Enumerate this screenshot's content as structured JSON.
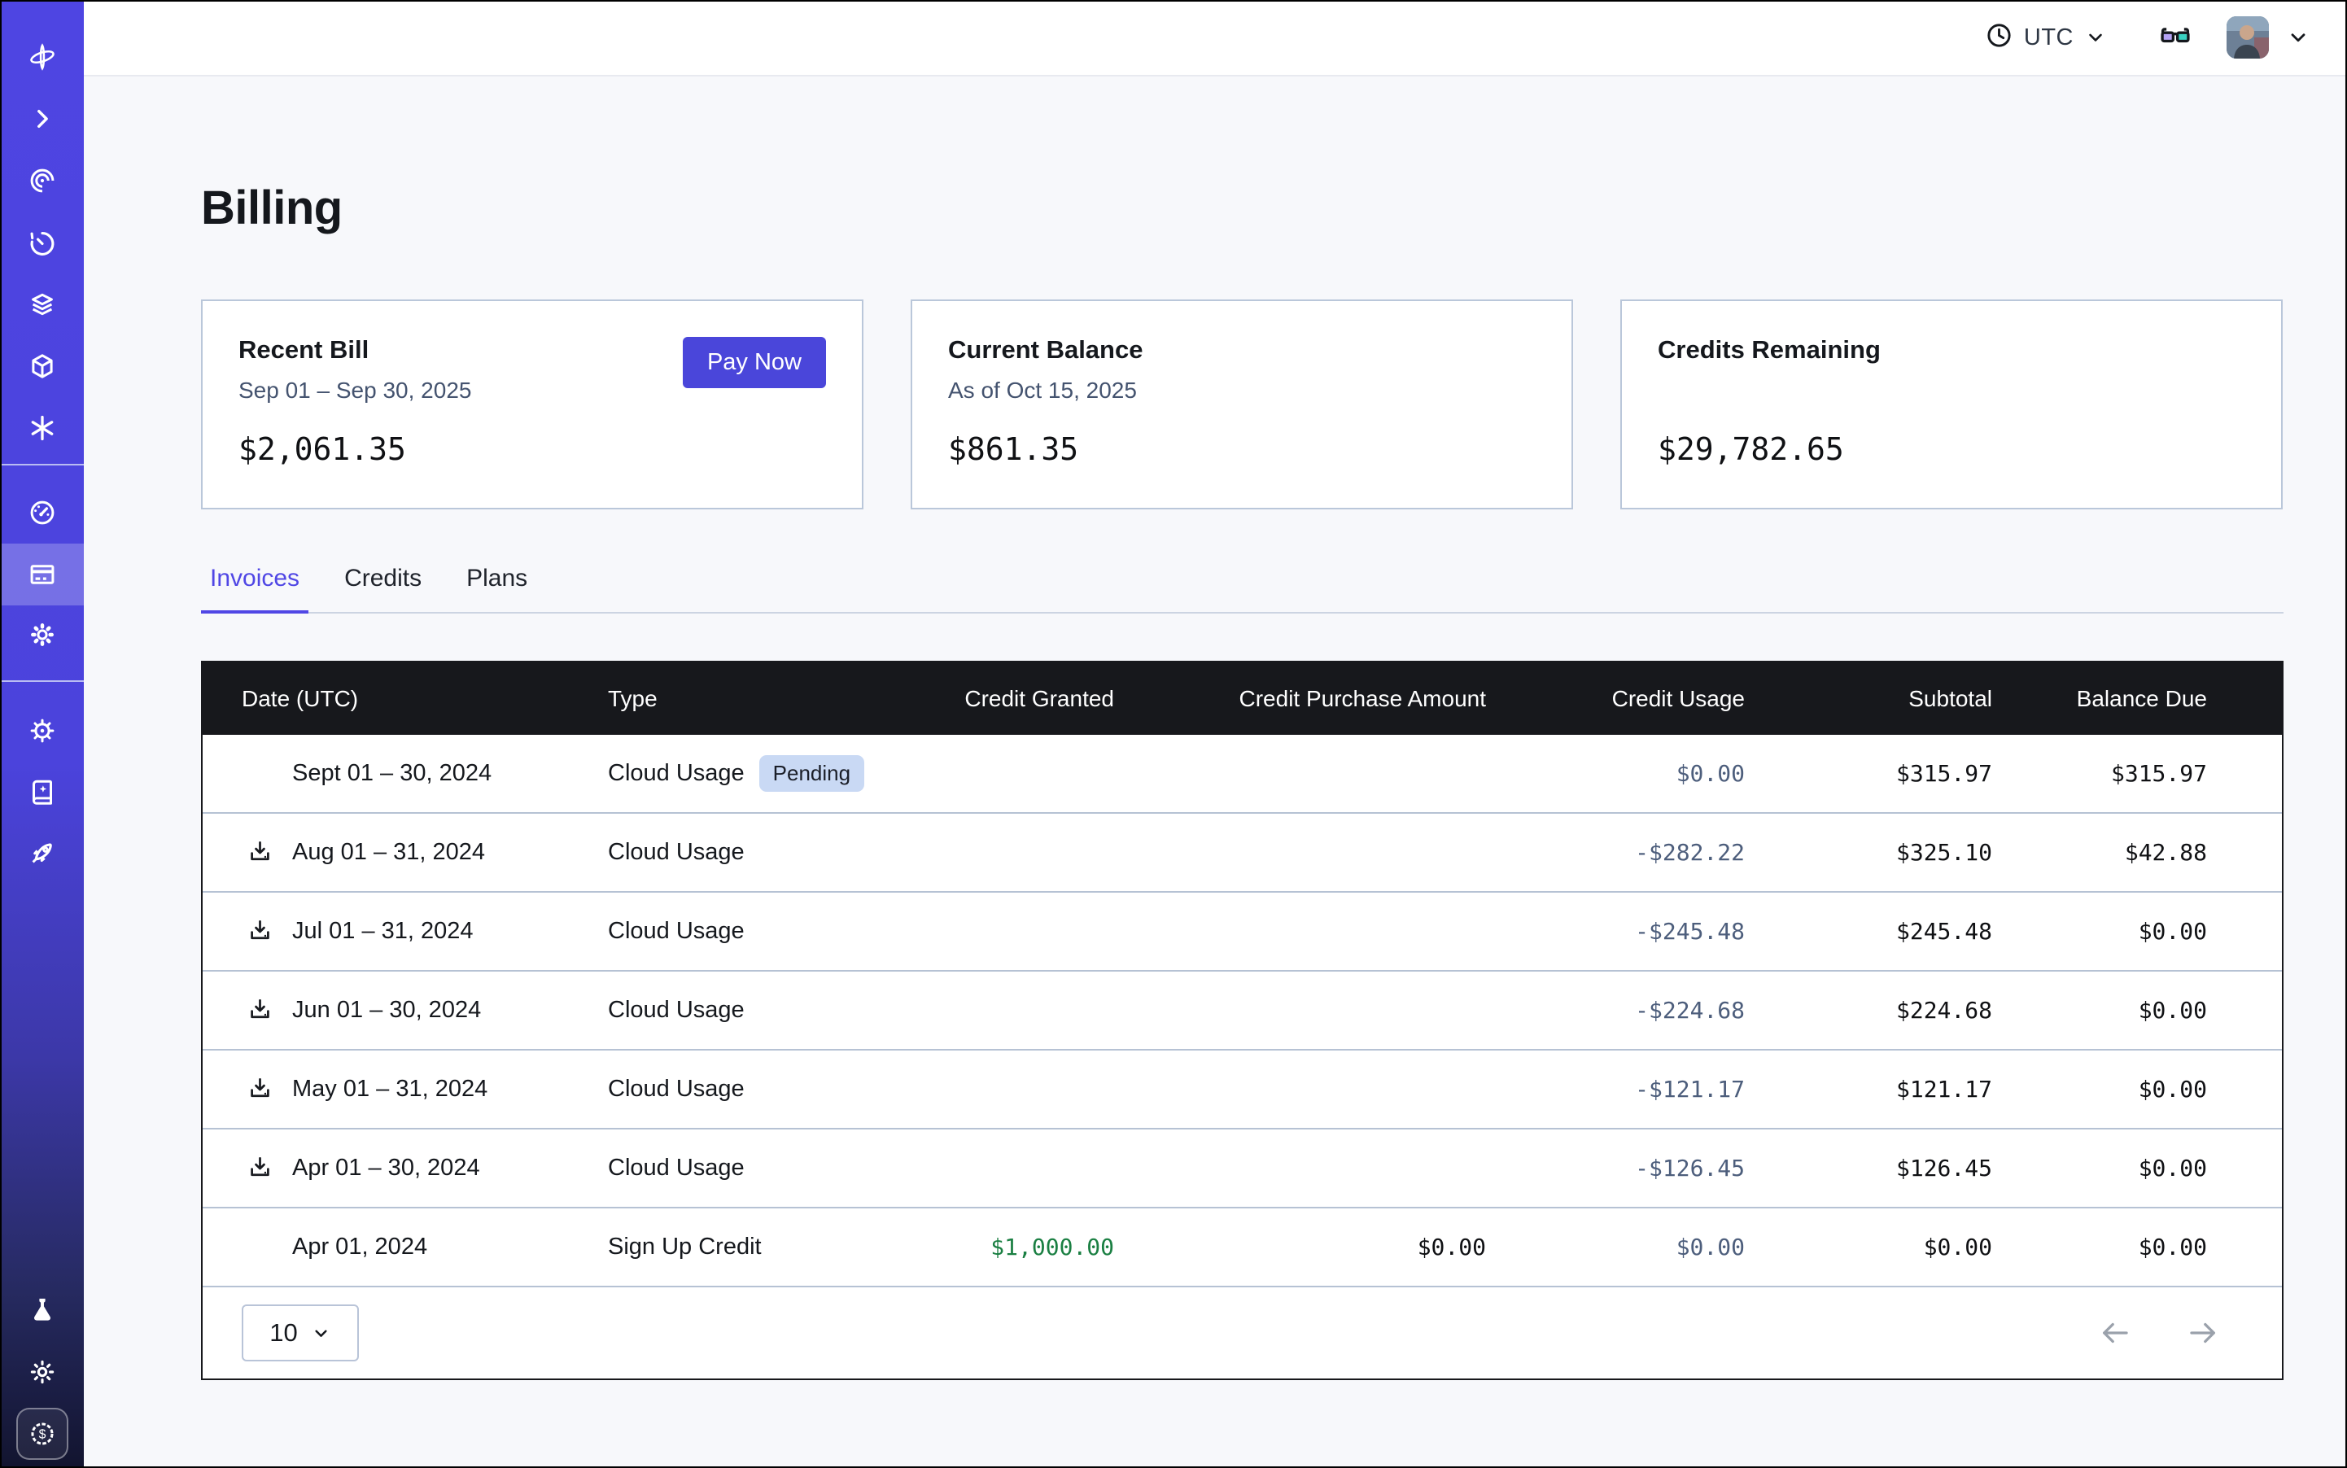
{
  "topbar": {
    "timezone": "UTC",
    "icons": [
      "clock-icon",
      "chevron-down-icon",
      "glasses-icon",
      "avatar",
      "chevron-down-icon"
    ]
  },
  "sidebar": {
    "accent_color": "#4e45e2",
    "items": [
      "logo-orbit",
      "collapse-chevron",
      "scry-eye",
      "history-timer",
      "layers",
      "cube",
      "asterisk",
      "usage-gauge",
      "billing-card",
      "settings-gear",
      "helm-wheel",
      "docs-book",
      "rocket",
      "labs-flask",
      "theme-sun",
      "credits-dollar-badge"
    ],
    "active_item": "billing-card"
  },
  "page": {
    "title": "Billing"
  },
  "cards": [
    {
      "title": "Recent Bill",
      "subtitle": "Sep 01 – Sep 30, 2025",
      "amount": "$2,061.35",
      "button": "Pay Now"
    },
    {
      "title": "Current Balance",
      "subtitle": "As of Oct 15, 2025",
      "amount": "$861.35"
    },
    {
      "title": "Credits Remaining",
      "subtitle": "",
      "amount": "$29,782.65"
    }
  ],
  "tabs": [
    {
      "label": "Invoices",
      "active": true
    },
    {
      "label": "Credits",
      "active": false
    },
    {
      "label": "Plans",
      "active": false
    }
  ],
  "table": {
    "columns": [
      "Date (UTC)",
      "Type",
      "Credit Granted",
      "Credit Purchase Amount",
      "Credit Usage",
      "Subtotal",
      "Balance Due"
    ],
    "rows": [
      {
        "date": "Sept 01 – 30, 2024",
        "type": "Cloud Usage",
        "badge": "Pending",
        "download": false,
        "credit_granted": "",
        "credit_purchase": "",
        "credit_usage": "$0.00",
        "subtotal": "$315.97",
        "balance_due": "$315.97"
      },
      {
        "date": "Aug 01 – 31, 2024",
        "type": "Cloud Usage",
        "badge": "",
        "download": true,
        "credit_granted": "",
        "credit_purchase": "",
        "credit_usage": "-$282.22",
        "subtotal": "$325.10",
        "balance_due": "$42.88"
      },
      {
        "date": "Jul 01 – 31, 2024",
        "type": "Cloud Usage",
        "badge": "",
        "download": true,
        "credit_granted": "",
        "credit_purchase": "",
        "credit_usage": "-$245.48",
        "subtotal": "$245.48",
        "balance_due": "$0.00"
      },
      {
        "date": "Jun 01 – 30, 2024",
        "type": "Cloud Usage",
        "badge": "",
        "download": true,
        "credit_granted": "",
        "credit_purchase": "",
        "credit_usage": "-$224.68",
        "subtotal": "$224.68",
        "balance_due": "$0.00"
      },
      {
        "date": "May 01 – 31, 2024",
        "type": "Cloud Usage",
        "badge": "",
        "download": true,
        "credit_granted": "",
        "credit_purchase": "",
        "credit_usage": "-$121.17",
        "subtotal": "$121.17",
        "balance_due": "$0.00"
      },
      {
        "date": "Apr 01 – 30, 2024",
        "type": "Cloud Usage",
        "badge": "",
        "download": true,
        "credit_granted": "",
        "credit_purchase": "",
        "credit_usage": "-$126.45",
        "subtotal": "$126.45",
        "balance_due": "$0.00"
      },
      {
        "date": "Apr 01, 2024",
        "type": "Sign Up Credit",
        "badge": "",
        "download": false,
        "credit_granted": "$1,000.00",
        "credit_purchase": "$0.00",
        "credit_usage": "$0.00",
        "subtotal": "$0.00",
        "balance_due": "$0.00"
      }
    ],
    "pagination": {
      "page_size": "10"
    }
  },
  "colors": {
    "accent": "#4a46da",
    "table_header_bg": "#17181c",
    "credit_usage_text": "#4d5e7c",
    "credit_granted_text": "#1a7f42",
    "pending_badge_bg": "#c9d9f4",
    "row_divider": "#b6c2d4"
  }
}
